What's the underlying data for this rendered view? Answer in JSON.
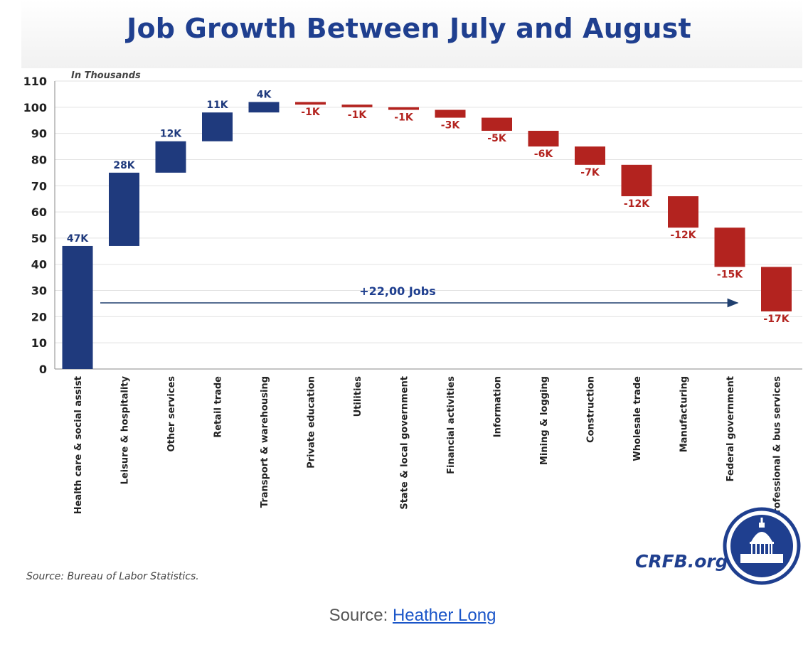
{
  "chart_data": {
    "type": "waterfall",
    "title": "Job Growth Between July and August",
    "unit_label": "In Thousands",
    "ylim": [
      0,
      110
    ],
    "yticks": [
      0,
      10,
      20,
      30,
      40,
      50,
      60,
      70,
      80,
      90,
      100,
      110
    ],
    "grid": true,
    "categories": [
      "Health care & social assist",
      "Leisure & hospitality",
      "Other services",
      "Retail trade",
      "Transport & warehousing",
      "Private education",
      "Utilities",
      "State & local government",
      "Financial activities",
      "Information",
      "Mining & logging",
      "Construction",
      "Wholesale trade",
      "Manufacturing",
      "Federal government",
      "Professional & bus services"
    ],
    "values": [
      47,
      28,
      12,
      11,
      4,
      -1,
      -1,
      -1,
      -3,
      -5,
      -6,
      -7,
      -12,
      -12,
      -15,
      -17
    ],
    "value_labels": [
      "47K",
      "28K",
      "12K",
      "11K",
      "4K",
      "-1K",
      "-1K",
      "-1K",
      "-3K",
      "-5K",
      "-6K",
      "-7K",
      "-12K",
      "-12K",
      "-15K",
      "-17K"
    ],
    "annotation": "+22,00 Jobs",
    "colors": {
      "positive": "#1f3a7d",
      "negative": "#b3231f",
      "title": "#1f3f8f"
    }
  },
  "footer": {
    "source_note": "Source: Bureau of Labor Statistics.",
    "brand": "CRFB.org",
    "logo_icon": "capitol-dome-seal-icon"
  },
  "caption": {
    "prefix": "Source:",
    "link_text": "Heather Long"
  }
}
